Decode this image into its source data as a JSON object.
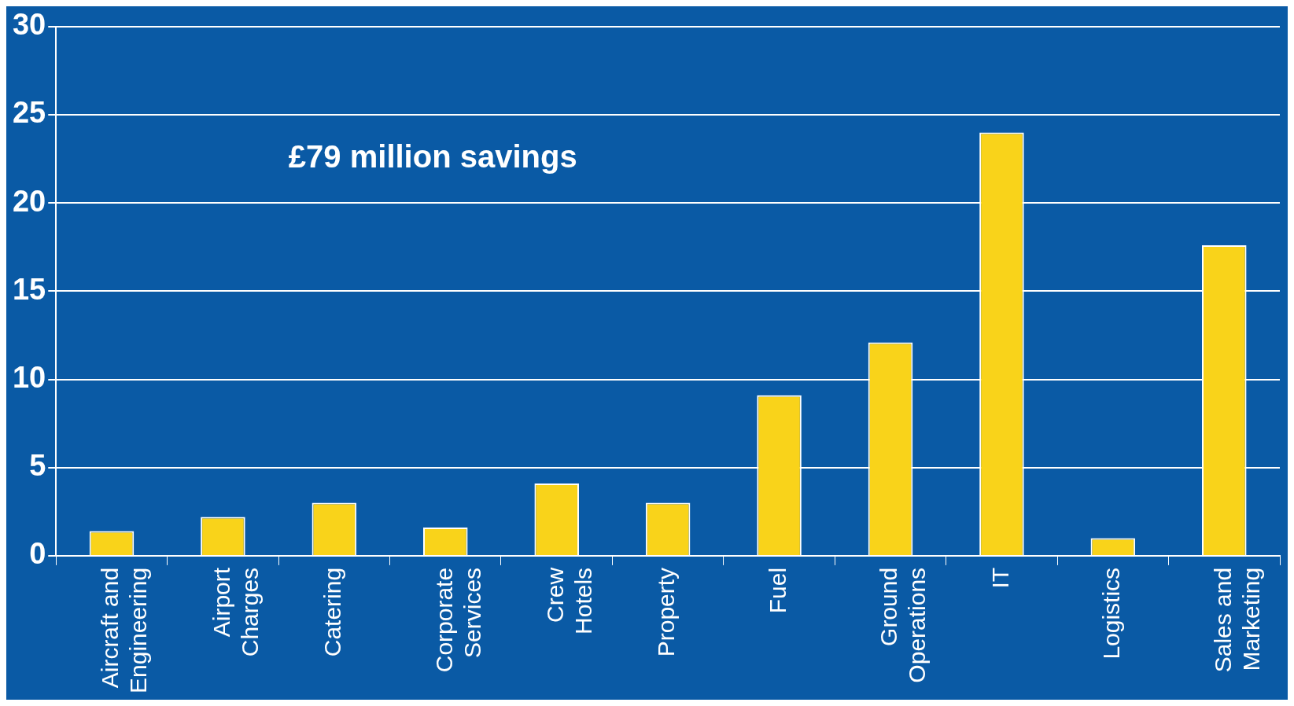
{
  "chart_data": {
    "type": "bar",
    "categories": [
      "Aircraft and Engineering",
      "Airport Charges",
      "Catering",
      "Corporate Services",
      "Crew Hotels",
      "Property",
      "Fuel",
      "Ground Operations",
      "IT",
      "Logistics",
      "Sales and Marketing"
    ],
    "values": [
      1.4,
      2.2,
      3.0,
      1.6,
      4.1,
      3.0,
      9.1,
      12.1,
      24.0,
      1.0,
      17.6
    ],
    "color": "#f9d31a",
    "ylim": [
      0,
      30
    ],
    "yticks": [
      0,
      5,
      10,
      15,
      20,
      25,
      30
    ],
    "grid": "y",
    "annotations": [
      "£79 million savings"
    ]
  }
}
